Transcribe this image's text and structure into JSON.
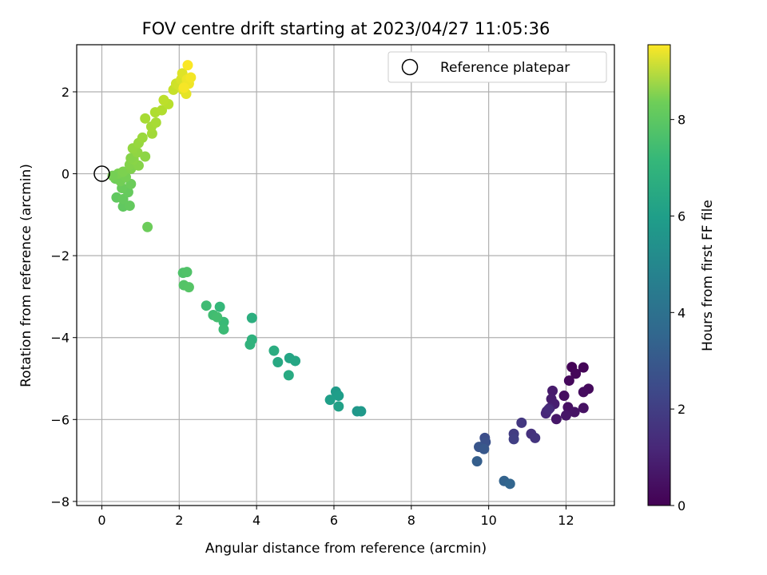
{
  "chart_data": {
    "type": "scatter",
    "title": "FOV centre drift starting at 2023/04/27 11:05:36",
    "xlabel": "Angular distance from reference (arcmin)",
    "ylabel": "Rotation from reference (arcmin)",
    "xlim": [
      -0.65,
      13.25
    ],
    "ylim": [
      -8.1,
      3.15
    ],
    "x_ticks": [
      0,
      2,
      4,
      6,
      8,
      10,
      12
    ],
    "y_ticks": [
      -8,
      -6,
      -4,
      -2,
      0,
      2
    ],
    "x_tick_labels": [
      "0",
      "2",
      "4",
      "6",
      "8",
      "10",
      "12"
    ],
    "y_tick_labels": [
      "−8",
      "−6",
      "−4",
      "−2",
      "0",
      "2"
    ],
    "grid": true,
    "legend": {
      "position": "top-right",
      "entries": [
        "Reference platepar"
      ]
    },
    "colorbar": {
      "label": "Hours from first FF file",
      "colormap": "viridis",
      "range": [
        0,
        9.55
      ],
      "ticks": [
        0,
        2,
        4,
        6,
        8
      ],
      "tick_labels": [
        "0",
        "2",
        "4",
        "6",
        "8"
      ]
    },
    "reference_point": {
      "x": 0,
      "y": 0,
      "label": "Reference platepar"
    },
    "points": [
      {
        "x": 12.15,
        "y": -4.72,
        "t": 0.05
      },
      {
        "x": 12.45,
        "y": -4.73,
        "t": 0.1
      },
      {
        "x": 12.25,
        "y": -4.88,
        "t": 0.15
      },
      {
        "x": 12.08,
        "y": -5.05,
        "t": 0.2
      },
      {
        "x": 12.58,
        "y": -5.25,
        "t": 0.25
      },
      {
        "x": 12.45,
        "y": -5.33,
        "t": 0.3
      },
      {
        "x": 11.95,
        "y": -5.42,
        "t": 0.35
      },
      {
        "x": 12.05,
        "y": -5.7,
        "t": 0.4
      },
      {
        "x": 12.45,
        "y": -5.72,
        "t": 0.45
      },
      {
        "x": 12.22,
        "y": -5.82,
        "t": 0.5
      },
      {
        "x": 12.0,
        "y": -5.9,
        "t": 0.55
      },
      {
        "x": 11.75,
        "y": -5.99,
        "t": 0.6
      },
      {
        "x": 11.65,
        "y": -5.3,
        "t": 0.7
      },
      {
        "x": 11.62,
        "y": -5.5,
        "t": 0.75
      },
      {
        "x": 11.7,
        "y": -5.62,
        "t": 0.8
      },
      {
        "x": 11.58,
        "y": -5.72,
        "t": 0.9
      },
      {
        "x": 11.5,
        "y": -5.8,
        "t": 1.0
      },
      {
        "x": 11.48,
        "y": -5.85,
        "t": 1.1
      },
      {
        "x": 11.55,
        "y": -5.75,
        "t": 1.2
      },
      {
        "x": 11.1,
        "y": -6.35,
        "t": 1.35
      },
      {
        "x": 11.2,
        "y": -6.45,
        "t": 1.45
      },
      {
        "x": 10.85,
        "y": -6.08,
        "t": 1.55
      },
      {
        "x": 10.65,
        "y": -6.35,
        "t": 1.7
      },
      {
        "x": 10.65,
        "y": -6.48,
        "t": 1.8
      },
      {
        "x": 9.9,
        "y": -6.45,
        "t": 2.3
      },
      {
        "x": 9.92,
        "y": -6.55,
        "t": 2.4
      },
      {
        "x": 9.75,
        "y": -6.67,
        "t": 2.55
      },
      {
        "x": 9.88,
        "y": -6.72,
        "t": 2.65
      },
      {
        "x": 9.7,
        "y": -7.02,
        "t": 2.85
      },
      {
        "x": 10.4,
        "y": -7.5,
        "t": 3.0
      },
      {
        "x": 10.55,
        "y": -7.57,
        "t": 3.1
      },
      {
        "x": 6.6,
        "y": -5.8,
        "t": 5.05
      },
      {
        "x": 6.7,
        "y": -5.8,
        "t": 5.1
      },
      {
        "x": 6.05,
        "y": -5.32,
        "t": 5.2
      },
      {
        "x": 6.12,
        "y": -5.42,
        "t": 5.3
      },
      {
        "x": 5.9,
        "y": -5.52,
        "t": 5.35
      },
      {
        "x": 6.12,
        "y": -5.68,
        "t": 5.45
      },
      {
        "x": 4.85,
        "y": -4.5,
        "t": 5.6
      },
      {
        "x": 5.0,
        "y": -4.57,
        "t": 5.65
      },
      {
        "x": 4.55,
        "y": -4.6,
        "t": 5.75
      },
      {
        "x": 4.83,
        "y": -4.92,
        "t": 5.8
      },
      {
        "x": 4.45,
        "y": -4.32,
        "t": 5.9
      },
      {
        "x": 3.88,
        "y": -3.52,
        "t": 6.0
      },
      {
        "x": 3.88,
        "y": -4.05,
        "t": 6.1
      },
      {
        "x": 3.83,
        "y": -4.17,
        "t": 6.15
      },
      {
        "x": 3.05,
        "y": -3.25,
        "t": 6.35
      },
      {
        "x": 3.15,
        "y": -3.62,
        "t": 6.45
      },
      {
        "x": 3.15,
        "y": -3.8,
        "t": 6.5
      },
      {
        "x": 2.7,
        "y": -3.22,
        "t": 6.55
      },
      {
        "x": 2.88,
        "y": -3.45,
        "t": 6.6
      },
      {
        "x": 2.98,
        "y": -3.5,
        "t": 6.65
      },
      {
        "x": 2.1,
        "y": -2.42,
        "t": 6.85
      },
      {
        "x": 2.2,
        "y": -2.4,
        "t": 6.9
      },
      {
        "x": 2.12,
        "y": -2.72,
        "t": 6.95
      },
      {
        "x": 2.25,
        "y": -2.77,
        "t": 7.0
      },
      {
        "x": 1.18,
        "y": -1.3,
        "t": 7.4
      },
      {
        "x": 0.55,
        "y": -0.8,
        "t": 7.2
      },
      {
        "x": 0.72,
        "y": -0.78,
        "t": 7.25
      },
      {
        "x": 0.38,
        "y": -0.58,
        "t": 7.2
      },
      {
        "x": 0.55,
        "y": -0.62,
        "t": 7.25
      },
      {
        "x": 0.68,
        "y": -0.45,
        "t": 7.3
      },
      {
        "x": 0.52,
        "y": -0.35,
        "t": 7.35
      },
      {
        "x": 0.75,
        "y": -0.25,
        "t": 7.4
      },
      {
        "x": 0.35,
        "y": -0.12,
        "t": 7.45
      },
      {
        "x": 0.48,
        "y": -0.18,
        "t": 7.5
      },
      {
        "x": 0.62,
        "y": -0.08,
        "t": 7.55
      },
      {
        "x": 0.42,
        "y": 0.0,
        "t": 7.6
      },
      {
        "x": 0.28,
        "y": -0.05,
        "t": 7.55
      },
      {
        "x": 0.55,
        "y": 0.05,
        "t": 7.65
      },
      {
        "x": 0.75,
        "y": 0.12,
        "t": 7.7
      },
      {
        "x": 0.72,
        "y": 0.22,
        "t": 7.75
      },
      {
        "x": 0.95,
        "y": 0.2,
        "t": 7.8
      },
      {
        "x": 0.82,
        "y": 0.35,
        "t": 7.85
      },
      {
        "x": 1.12,
        "y": 0.42,
        "t": 7.9
      },
      {
        "x": 0.75,
        "y": 0.38,
        "t": 7.8
      },
      {
        "x": 0.92,
        "y": 0.52,
        "t": 7.95
      },
      {
        "x": 0.8,
        "y": 0.62,
        "t": 8.0
      },
      {
        "x": 0.95,
        "y": 0.75,
        "t": 8.05
      },
      {
        "x": 1.05,
        "y": 0.88,
        "t": 8.1
      },
      {
        "x": 1.3,
        "y": 0.98,
        "t": 8.2
      },
      {
        "x": 1.28,
        "y": 1.15,
        "t": 8.25
      },
      {
        "x": 1.4,
        "y": 1.25,
        "t": 8.3
      },
      {
        "x": 1.12,
        "y": 1.35,
        "t": 8.3
      },
      {
        "x": 1.38,
        "y": 1.5,
        "t": 8.4
      },
      {
        "x": 1.55,
        "y": 1.55,
        "t": 8.45
      },
      {
        "x": 1.72,
        "y": 1.7,
        "t": 8.55
      },
      {
        "x": 1.6,
        "y": 1.8,
        "t": 8.6
      },
      {
        "x": 1.85,
        "y": 2.05,
        "t": 8.75
      },
      {
        "x": 1.92,
        "y": 2.2,
        "t": 8.85
      },
      {
        "x": 2.0,
        "y": 2.15,
        "t": 8.9
      },
      {
        "x": 2.05,
        "y": 2.3,
        "t": 9.0
      },
      {
        "x": 2.1,
        "y": 2.05,
        "t": 9.1
      },
      {
        "x": 2.15,
        "y": 2.15,
        "t": 9.15
      },
      {
        "x": 2.18,
        "y": 1.95,
        "t": 9.2
      },
      {
        "x": 2.08,
        "y": 2.45,
        "t": 9.1
      },
      {
        "x": 2.2,
        "y": 2.3,
        "t": 9.3
      },
      {
        "x": 2.25,
        "y": 2.2,
        "t": 9.35
      },
      {
        "x": 2.3,
        "y": 2.35,
        "t": 9.4
      },
      {
        "x": 2.12,
        "y": 2.1,
        "t": 9.45
      },
      {
        "x": 2.22,
        "y": 2.65,
        "t": 9.5
      }
    ]
  }
}
